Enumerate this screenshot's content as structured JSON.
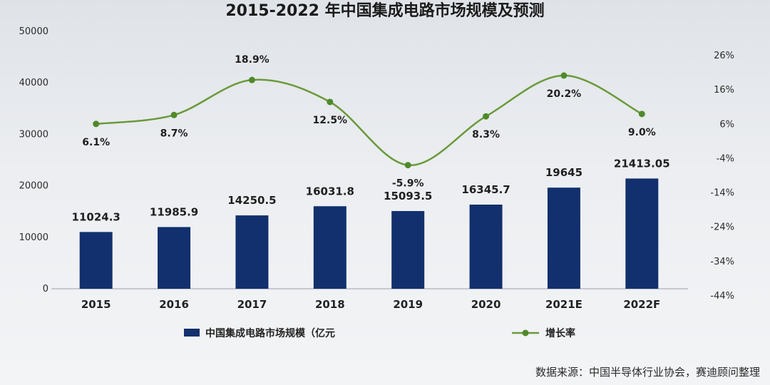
{
  "title": "2015-2022 年中国集成电路市场规模及预测",
  "source": "数据来源：中国半导体行业协会，赛迪顾问整理",
  "colors": {
    "bar": "#12306e",
    "line": "#6a9a3b",
    "marker": "#4f8a2a"
  },
  "chart_data": {
    "type": "bar",
    "categories": [
      "2015",
      "2016",
      "2017",
      "2018",
      "2019",
      "2020",
      "2021E",
      "2022F"
    ],
    "series": [
      {
        "name": "中国集成电路市场规模（亿元",
        "type": "bar",
        "axis": "left",
        "values": [
          11024.3,
          11985.9,
          14250.5,
          16031.8,
          15093.5,
          16345.7,
          19645,
          21413.05
        ],
        "labels": [
          "11024.3",
          "11985.9",
          "14250.5",
          "16031.8",
          "15093.5",
          "16345.7",
          "19645",
          "21413.05"
        ]
      },
      {
        "name": "增长率",
        "type": "line",
        "axis": "right",
        "values": [
          6.1,
          8.7,
          18.9,
          12.5,
          -5.9,
          8.3,
          20.2,
          9.0
        ],
        "labels": [
          "6.1%",
          "8.7%",
          "18.9%",
          "12.5%",
          "-5.9%",
          "8.3%",
          "20.2%",
          "9.0%"
        ]
      }
    ],
    "y_left": {
      "ticks": [
        "0",
        "10000",
        "20000",
        "30000",
        "40000",
        "50000"
      ],
      "ylim": [
        0,
        50000
      ]
    },
    "y_right": {
      "ticks": [
        "-44%",
        "-34%",
        "-24%",
        "-14%",
        "-4%",
        "6%",
        "16%",
        "26%"
      ],
      "ylim": [
        -44,
        26
      ]
    },
    "legend_position": "bottom",
    "grid": false
  }
}
